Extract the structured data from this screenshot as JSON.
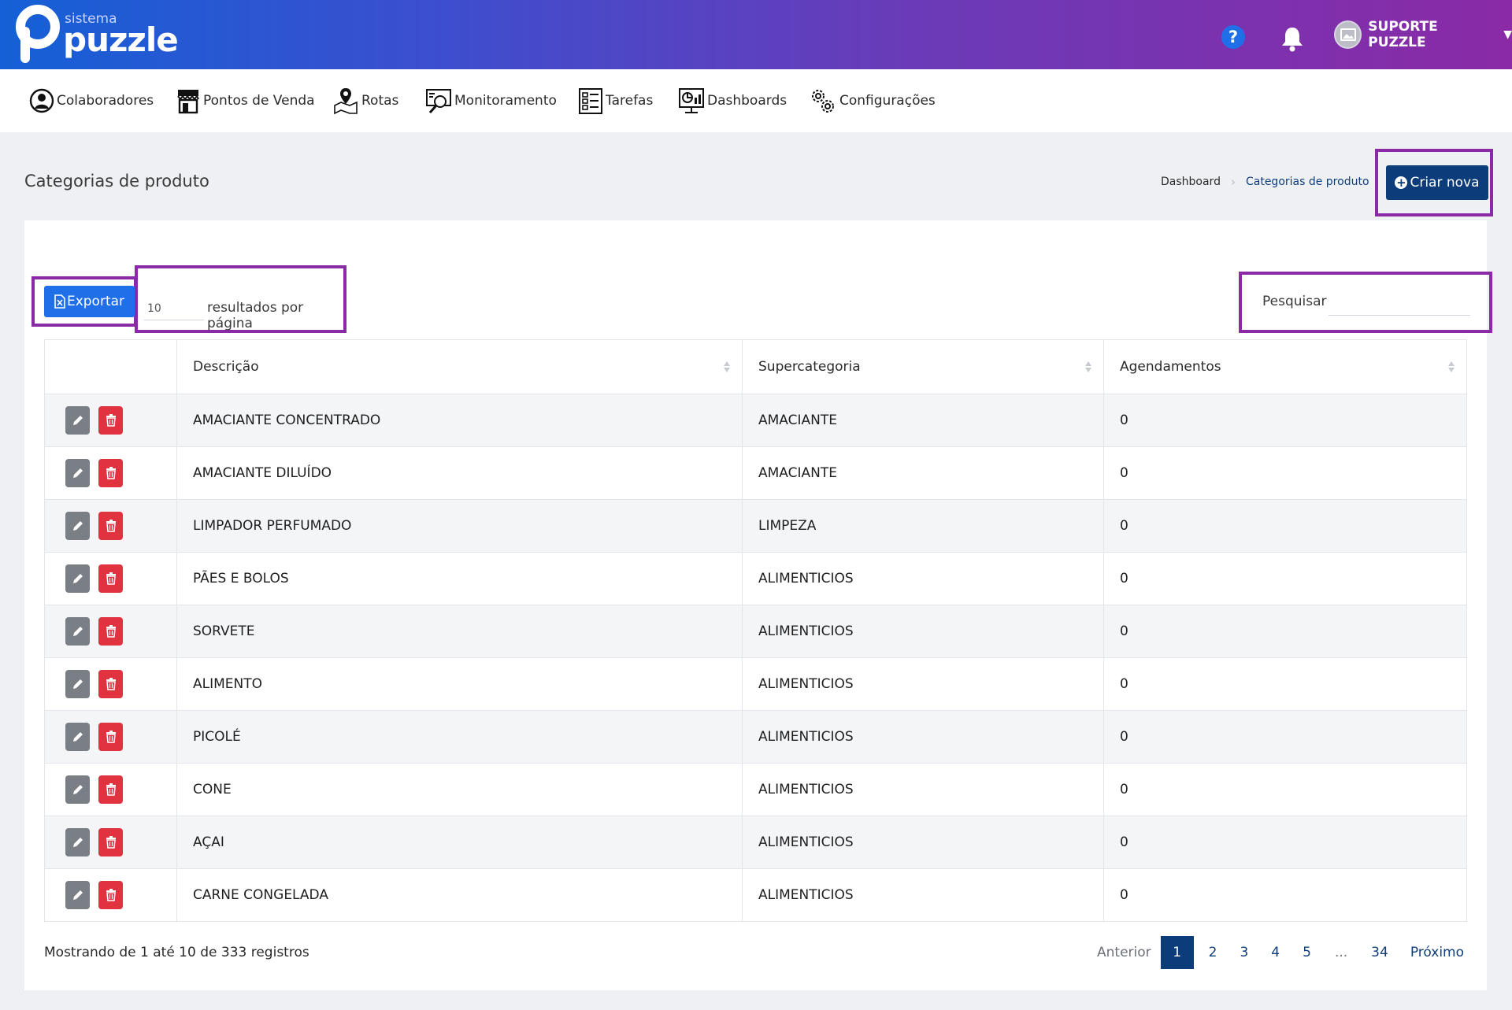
{
  "header": {
    "logo_sub": "sistema",
    "logo_main": "puzzle",
    "help_label": "?",
    "user_name": "SUPORTE PUZZLE"
  },
  "nav": {
    "items": [
      {
        "label": "Colaboradores",
        "icon": "user-circle-icon"
      },
      {
        "label": "Pontos de Venda",
        "icon": "store-icon"
      },
      {
        "label": "Rotas",
        "icon": "map-pin-icon"
      },
      {
        "label": "Monitoramento",
        "icon": "monitor-search-icon"
      },
      {
        "label": "Tarefas",
        "icon": "checklist-icon"
      },
      {
        "label": "Dashboards",
        "icon": "dashboard-icon"
      },
      {
        "label": "Configurações",
        "icon": "gears-icon"
      }
    ]
  },
  "page": {
    "title": "Categorias de produto",
    "breadcrumb": [
      "Dashboard",
      "Categorias de produto"
    ],
    "create_label": "Criar nova"
  },
  "toolbar": {
    "export_label": "Exportar",
    "per_page_value": "10",
    "per_page_text": "resultados por página",
    "search_label": "Pesquisar",
    "search_value": ""
  },
  "table": {
    "columns": [
      "",
      "Descrição",
      "Supercategoria",
      "Agendamentos"
    ],
    "rows": [
      {
        "descricao": "AMACIANTE CONCENTRADO",
        "supercategoria": "AMACIANTE",
        "agendamentos": "0"
      },
      {
        "descricao": "AMACIANTE DILUÍDO",
        "supercategoria": "AMACIANTE",
        "agendamentos": "0"
      },
      {
        "descricao": "LIMPADOR PERFUMADO",
        "supercategoria": "LIMPEZA",
        "agendamentos": "0"
      },
      {
        "descricao": "PÃES E BOLOS",
        "supercategoria": "ALIMENTICIOS",
        "agendamentos": "0"
      },
      {
        "descricao": "SORVETE",
        "supercategoria": "ALIMENTICIOS",
        "agendamentos": "0"
      },
      {
        "descricao": "ALIMENTO",
        "supercategoria": "ALIMENTICIOS",
        "agendamentos": "0"
      },
      {
        "descricao": "PICOLÉ",
        "supercategoria": "ALIMENTICIOS",
        "agendamentos": "0"
      },
      {
        "descricao": "CONE",
        "supercategoria": "ALIMENTICIOS",
        "agendamentos": "0"
      },
      {
        "descricao": "AÇAI",
        "supercategoria": "ALIMENTICIOS",
        "agendamentos": "0"
      },
      {
        "descricao": "CARNE CONGELADA",
        "supercategoria": "ALIMENTICIOS",
        "agendamentos": "0"
      }
    ]
  },
  "footer": {
    "info": "Mostrando de 1 até 10 de 333 registros",
    "prev": "Anterior",
    "pages": [
      "1",
      "2",
      "3",
      "4",
      "5",
      "...",
      "34"
    ],
    "active_page": "1",
    "next": "Próximo"
  },
  "colors": {
    "header_gradient_start": "#1560d6",
    "header_gradient_end": "#8a2aa6",
    "primary_dark": "#0d3c7a",
    "primary_blue": "#1f6fe8",
    "danger": "#e0323f",
    "highlight_border": "#8a2aa6"
  }
}
